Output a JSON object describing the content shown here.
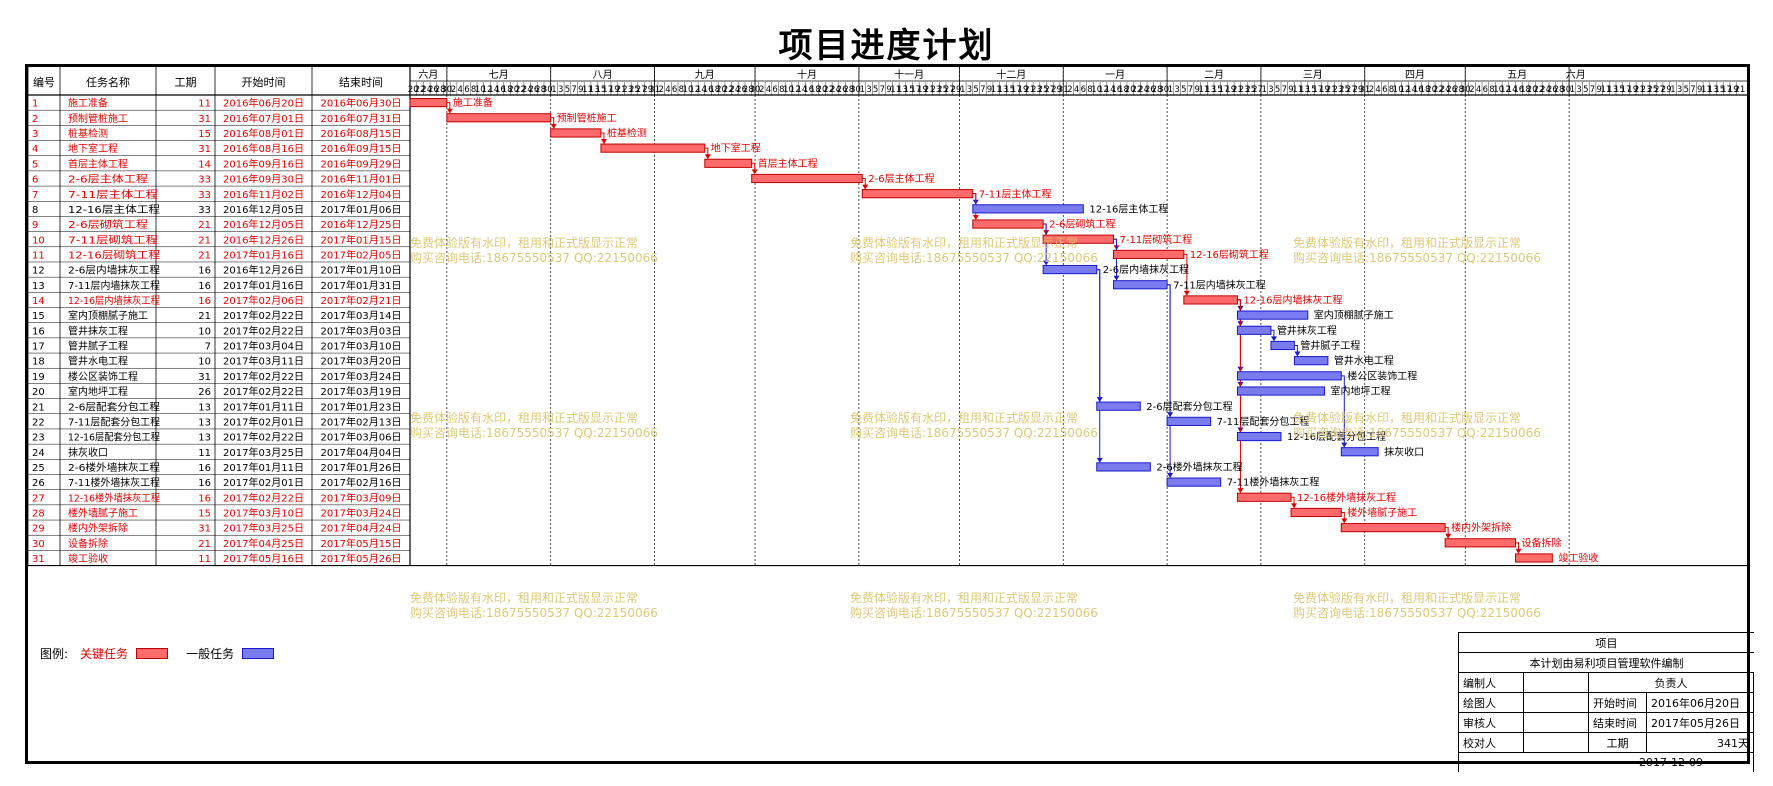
{
  "title": "项目进度计划",
  "table_headers": [
    "编号",
    "任务名称",
    "工期",
    "开始时间",
    "结束时间"
  ],
  "month_headers": [
    "六月",
    "七月",
    "八月",
    "九月",
    "十月",
    "十一月",
    "十二月",
    "一月",
    "二月",
    "三月",
    "四月",
    "五月",
    "六月"
  ],
  "watermark": {
    "line1": "免费体验版有水印，租用和正式版显示正常",
    "line2": "购买咨询电话:18675550537 QQ:22150066"
  },
  "legend": {
    "label": "图例:",
    "critical": "关键任务",
    "normal": "一般任务",
    "colors": {
      "critical_fill": "#ff6b6b",
      "critical_stroke": "#c00000",
      "normal_fill": "#7b7bf0",
      "normal_stroke": "#1a1acc"
    }
  },
  "info_box": {
    "project_label": "项目",
    "generated_by": "本计划由易利项目管理软件编制",
    "compiler": "编制人",
    "owner": "负责人",
    "drawer": "绘图人",
    "start_label": "开始时间",
    "start_value": "2016年06月20日",
    "reviewer": "审核人",
    "end_label": "结束时间",
    "end_value": "2017年05月26日",
    "checker": "校对人",
    "duration_label": "工期",
    "duration_value": "341天",
    "date": "2017-12-09"
  },
  "chart_data": {
    "type": "gantt",
    "title": "项目进度计划",
    "x_range": [
      "2016-06-20",
      "2017-06-05"
    ],
    "tasks": [
      {
        "id": "1",
        "name": "施工准备",
        "duration": "11",
        "start": "2016年06月20日",
        "end": "2016年06月30日",
        "critical": true
      },
      {
        "id": "2",
        "name": "预制管桩施工",
        "duration": "31",
        "start": "2016年07月01日",
        "end": "2016年07月31日",
        "critical": true
      },
      {
        "id": "3",
        "name": "桩基检测",
        "duration": "15",
        "start": "2016年08月01日",
        "end": "2016年08月15日",
        "critical": true
      },
      {
        "id": "4",
        "name": "地下室工程",
        "duration": "31",
        "start": "2016年08月16日",
        "end": "2016年09月15日",
        "critical": true
      },
      {
        "id": "5",
        "name": "首层主体工程",
        "duration": "14",
        "start": "2016年09月16日",
        "end": "2016年09月29日",
        "critical": true
      },
      {
        "id": "6",
        "name": "2-6层主体工程",
        "duration": "33",
        "start": "2016年09月30日",
        "end": "2016年11月01日",
        "critical": true
      },
      {
        "id": "7",
        "name": "7-11层主体工程",
        "duration": "33",
        "start": "2016年11月02日",
        "end": "2016年12月04日",
        "critical": true
      },
      {
        "id": "8",
        "name": "12-16层主体工程",
        "duration": "33",
        "start": "2016年12月05日",
        "end": "2017年01月06日",
        "critical": false
      },
      {
        "id": "9",
        "name": "2-6层砌筑工程",
        "duration": "21",
        "start": "2016年12月05日",
        "end": "2016年12月25日",
        "critical": true
      },
      {
        "id": "10",
        "name": "7-11层砌筑工程",
        "duration": "21",
        "start": "2016年12月26日",
        "end": "2017年01月15日",
        "critical": true
      },
      {
        "id": "11",
        "name": "12-16层砌筑工程",
        "duration": "21",
        "start": "2017年01月16日",
        "end": "2017年02月05日",
        "critical": true
      },
      {
        "id": "12",
        "name": "2-6层内墙抹灰工程",
        "duration": "16",
        "start": "2016年12月26日",
        "end": "2017年01月10日",
        "critical": false
      },
      {
        "id": "13",
        "name": "7-11层内墙抹灰工程",
        "duration": "16",
        "start": "2017年01月16日",
        "end": "2017年01月31日",
        "critical": false
      },
      {
        "id": "14",
        "name": "12-16层内墙抹灰工程",
        "duration": "16",
        "start": "2017年02月06日",
        "end": "2017年02月21日",
        "critical": true
      },
      {
        "id": "15",
        "name": "室内顶棚腻子施工",
        "duration": "21",
        "start": "2017年02月22日",
        "end": "2017年03月14日",
        "critical": false
      },
      {
        "id": "16",
        "name": "管井抹灰工程",
        "duration": "10",
        "start": "2017年02月22日",
        "end": "2017年03月03日",
        "critical": false
      },
      {
        "id": "17",
        "name": "管井腻子工程",
        "duration": "7",
        "start": "2017年03月04日",
        "end": "2017年03月10日",
        "critical": false
      },
      {
        "id": "18",
        "name": "管井水电工程",
        "duration": "10",
        "start": "2017年03月11日",
        "end": "2017年03月20日",
        "critical": false
      },
      {
        "id": "19",
        "name": "楼公区装饰工程",
        "duration": "31",
        "start": "2017年02月22日",
        "end": "2017年03月24日",
        "critical": false
      },
      {
        "id": "20",
        "name": "室内地坪工程",
        "duration": "26",
        "start": "2017年02月22日",
        "end": "2017年03月19日",
        "critical": false
      },
      {
        "id": "21",
        "name": "2-6层配套分包工程",
        "duration": "13",
        "start": "2017年01月11日",
        "end": "2017年01月23日",
        "critical": false
      },
      {
        "id": "22",
        "name": "7-11层配套分包工程",
        "duration": "13",
        "start": "2017年02月01日",
        "end": "2017年02月13日",
        "critical": false
      },
      {
        "id": "23",
        "name": "12-16层配套分包工程",
        "duration": "13",
        "start": "2017年02月22日",
        "end": "2017年03月06日",
        "critical": false
      },
      {
        "id": "24",
        "name": "抹灰收口",
        "duration": "11",
        "start": "2017年03月25日",
        "end": "2017年04月04日",
        "critical": false
      },
      {
        "id": "25",
        "name": "2-6楼外墙抹灰工程",
        "duration": "16",
        "start": "2017年01月11日",
        "end": "2017年01月26日",
        "critical": false
      },
      {
        "id": "26",
        "name": "7-11楼外墙抹灰工程",
        "duration": "16",
        "start": "2017年02月01日",
        "end": "2017年02月16日",
        "critical": false
      },
      {
        "id": "27",
        "name": "12-16楼外墙抹灰工程",
        "duration": "16",
        "start": "2017年02月22日",
        "end": "2017年03月09日",
        "critical": true
      },
      {
        "id": "28",
        "name": "楼外墙腻子施工",
        "duration": "15",
        "start": "2017年03月10日",
        "end": "2017年03月24日",
        "critical": true
      },
      {
        "id": "29",
        "name": "楼内外架拆除",
        "duration": "31",
        "start": "2017年03月25日",
        "end": "2017年04月24日",
        "critical": true
      },
      {
        "id": "30",
        "name": "设备拆除",
        "duration": "21",
        "start": "2017年04月25日",
        "end": "2017年05月15日",
        "critical": true
      },
      {
        "id": "31",
        "name": "竣工验收",
        "duration": "11",
        "start": "2017年05月16日",
        "end": "2017年05月26日",
        "critical": true
      }
    ],
    "bar_labels": [
      "施工准备",
      "预制管桩施工",
      "桩基检测",
      "地下室工程",
      "首层主体工程",
      "2-6层主体工程",
      "7-11层主体工程",
      "12-16层主体工程",
      "2-6层砌筑工程",
      "7-11层砌筑工程",
      "12-16层砌筑工程",
      "2-6层内墙抹灰工程",
      "7-11层内墙抹灰工程",
      "12-16层内墙抹灰工程",
      "室内顶棚腻子施工",
      "管井抹灰工程",
      "管井腻子工程",
      "管井水电工程",
      "楼公区装饰工程",
      "室内地坪工程",
      "2-6层配套分包工程",
      "7-11层配套分包工程",
      "12-16层配套分包工程",
      "抹灰收口",
      "2-6楼外墙抹灰工程",
      "7-11楼外墙抹灰工程",
      "12-16楼外墙抹灰工程",
      "楼外墙腻子施工",
      "楼内外架拆除",
      "设备拆除",
      "竣工验收"
    ],
    "dependencies": [
      [
        1,
        2
      ],
      [
        2,
        3
      ],
      [
        3,
        4
      ],
      [
        4,
        5
      ],
      [
        5,
        6
      ],
      [
        6,
        7
      ],
      [
        7,
        8
      ],
      [
        7,
        9
      ],
      [
        9,
        10
      ],
      [
        10,
        11
      ],
      [
        9,
        12
      ],
      [
        10,
        13
      ],
      [
        11,
        14
      ],
      [
        14,
        15
      ],
      [
        14,
        16
      ],
      [
        16,
        17
      ],
      [
        17,
        18
      ],
      [
        14,
        19
      ],
      [
        14,
        20
      ],
      [
        12,
        21
      ],
      [
        13,
        22
      ],
      [
        14,
        23
      ],
      [
        19,
        24
      ],
      [
        12,
        25
      ],
      [
        13,
        26
      ],
      [
        14,
        27
      ],
      [
        27,
        28
      ],
      [
        28,
        29
      ],
      [
        29,
        30
      ],
      [
        30,
        31
      ]
    ]
  }
}
